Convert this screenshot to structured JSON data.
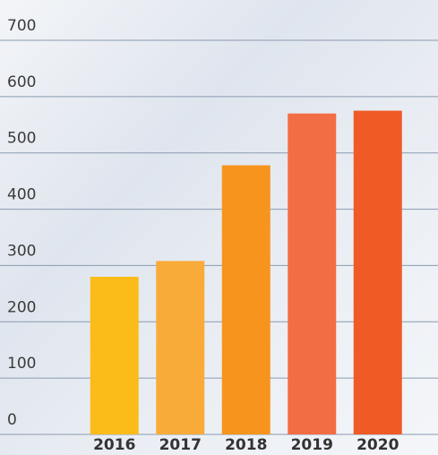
{
  "chart_data": {
    "type": "bar",
    "categories": [
      "2016",
      "2017",
      "2018",
      "2019",
      "2020"
    ],
    "values": [
      280,
      308,
      478,
      570,
      575
    ],
    "colors": [
      "#fbbc1a",
      "#f9ab3a",
      "#f7941d",
      "#f36d44",
      "#f05a24"
    ],
    "ylim": [
      0,
      700
    ],
    "yticks": [
      0,
      100,
      200,
      300,
      400,
      500,
      600,
      700
    ],
    "grid": true
  }
}
